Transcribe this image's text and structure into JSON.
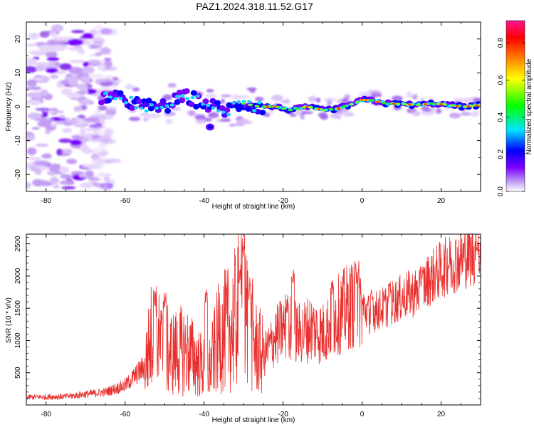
{
  "title": "PAZ1.2024.318.11.52.G17",
  "colors": {
    "snr_line": "#e8302e",
    "frame": "#000000"
  },
  "chart_data": [
    {
      "type": "heatmap",
      "xlabel": "Height of straight line (km)",
      "ylabel": "Frequency (Hz)",
      "xlim": [
        -85,
        30
      ],
      "ylim": [
        -25,
        25
      ],
      "x_ticks": [
        -80,
        -60,
        -40,
        -20,
        0,
        20
      ],
      "y_ticks": [
        -20,
        -10,
        0,
        10,
        20
      ],
      "colorbar": {
        "label": "Normalized spectral amplitude",
        "range": [
          0,
          0.92
        ],
        "ticks": [
          0.0,
          0.2,
          0.4,
          0.6,
          0.8
        ],
        "colormap": [
          "#ffffff",
          "#c9a9f5",
          "#7a00ff",
          "#0000ff",
          "#00e5ff",
          "#00ff00",
          "#ffff00",
          "#ff8000",
          "#ff0000",
          "#ff1493"
        ]
      },
      "ridge": {
        "x": [
          -66,
          -60,
          -55,
          -50,
          -45,
          -42,
          -38,
          -34,
          -30,
          -26,
          -22,
          -18,
          -14,
          -10,
          -6,
          -2,
          0,
          2,
          6,
          10,
          14,
          18,
          22,
          26,
          30
        ],
        "frequency": [
          3,
          2,
          0,
          0,
          3,
          2,
          0,
          -1,
          1,
          0,
          0,
          -1,
          0,
          -1,
          -0.5,
          1,
          2,
          2,
          1,
          0.8,
          0.5,
          1,
          0.5,
          0,
          0.5
        ]
      },
      "noise_region_x": [
        -85,
        -65
      ]
    },
    {
      "type": "line",
      "xlabel": "Height of straight line (km)",
      "ylabel": "SNR (10 * v/v)",
      "xlim": [
        -85,
        30
      ],
      "ylim": [
        0,
        2650
      ],
      "x_ticks": [
        -80,
        -60,
        -40,
        -20,
        0,
        20
      ],
      "y_ticks": [
        500,
        1000,
        1500,
        2000,
        2500
      ],
      "envelope": {
        "x": [
          -85,
          -75,
          -65,
          -60,
          -55,
          -53,
          -51,
          -48,
          -45,
          -42,
          -39,
          -36,
          -33,
          -31,
          -29,
          -27,
          -25,
          -22,
          -19,
          -16,
          -13,
          -10,
          -7,
          -4,
          -1,
          2,
          5,
          8,
          11,
          14,
          17,
          20,
          23,
          26,
          30
        ],
        "y": [
          120,
          130,
          200,
          300,
          600,
          1150,
          900,
          800,
          850,
          700,
          500,
          1100,
          1200,
          1500,
          1350,
          900,
          750,
          1050,
          1250,
          1100,
          1200,
          1100,
          1350,
          1500,
          1600,
          1400,
          1500,
          1600,
          1700,
          1750,
          1950,
          2100,
          2200,
          2300,
          2380
        ]
      },
      "spikes": [
        {
          "x": -52.5,
          "y": 1800
        },
        {
          "x": -50.0,
          "y": 1750
        },
        {
          "x": -39.5,
          "y": 1800
        },
        {
          "x": -30.0,
          "y": 2650
        },
        {
          "x": -31.0,
          "y": 2200
        },
        {
          "x": -28.5,
          "y": 1900
        },
        {
          "x": -17.5,
          "y": 2200
        },
        {
          "x": -19.0,
          "y": 1650
        },
        {
          "x": -7.5,
          "y": 1950
        },
        {
          "x": -1.5,
          "y": 2200
        },
        {
          "x": 2.5,
          "y": 1800
        },
        {
          "x": 7.0,
          "y": 1900
        },
        {
          "x": 15.0,
          "y": 2100
        },
        {
          "x": 22.0,
          "y": 2300
        },
        {
          "x": 29.0,
          "y": 2600
        }
      ]
    }
  ]
}
